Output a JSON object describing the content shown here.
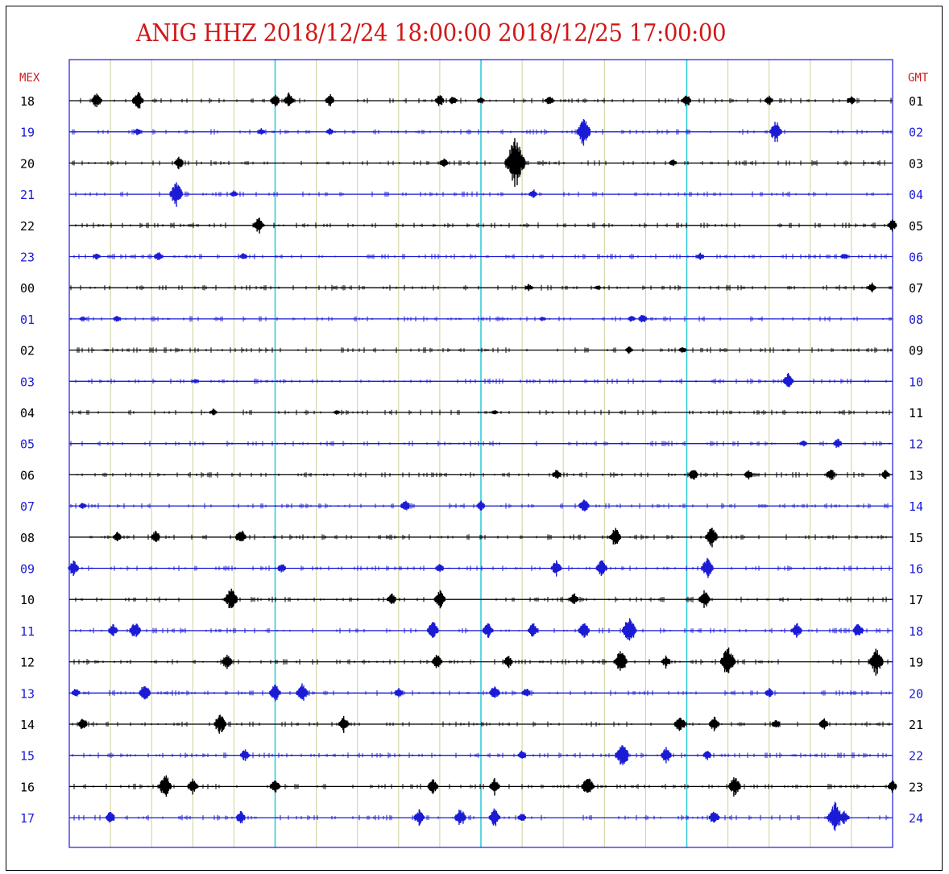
{
  "title": "ANIG HHZ 2018/12/24 18:00:00 2018/12/25 17:00:00",
  "left_header": "MEX",
  "right_header": "GMT",
  "colors": {
    "title": "#d01818",
    "header": "#d01818",
    "trace_a": "#000000",
    "trace_b": "#1b1bd6",
    "frame": "#1b1bd6",
    "minute_grid": "#cfcf9a",
    "hour_marks": "#27c9d8"
  },
  "chart_data": {
    "type": "helicorder",
    "title": "ANIG HHZ 2018/12/24 18:00:00 2018/12/25 17:00:00",
    "station": "ANIG",
    "channel": "HHZ",
    "start": "2018/12/24 18:00:00",
    "end": "2018/12/25 17:00:00",
    "minutes_per_line": 60,
    "minute_gridlines": 20,
    "highlighted_minutes": [
      15,
      30,
      45
    ],
    "rows": [
      {
        "mex": "18",
        "gmt": "01",
        "bursts": [
          [
            2,
            0.5
          ],
          [
            5,
            0.6
          ],
          [
            15,
            0.4
          ],
          [
            16,
            0.5
          ],
          [
            19,
            0.4
          ],
          [
            27,
            0.4
          ],
          [
            28,
            0.3
          ],
          [
            30,
            0.2
          ],
          [
            35,
            0.3
          ],
          [
            45,
            0.4
          ],
          [
            51,
            0.3
          ],
          [
            57,
            0.3
          ]
        ]
      },
      {
        "mex": "19",
        "gmt": "02",
        "bursts": [
          [
            5,
            0.2
          ],
          [
            14,
            0.2
          ],
          [
            19,
            0.2
          ],
          [
            37.5,
            0.9
          ],
          [
            51.5,
            0.7
          ]
        ]
      },
      {
        "mex": "20",
        "gmt": "03",
        "bursts": [
          [
            8,
            0.4
          ],
          [
            27.3,
            0.3
          ],
          [
            32.5,
            1.6
          ],
          [
            44,
            0.2
          ]
        ]
      },
      {
        "mex": "21",
        "gmt": "04",
        "bursts": [
          [
            7.8,
            0.8
          ],
          [
            12,
            0.2
          ],
          [
            33.8,
            0.3
          ]
        ]
      },
      {
        "mex": "22",
        "gmt": "05",
        "bursts": [
          [
            13.8,
            0.5
          ],
          [
            60,
            0.4
          ]
        ]
      },
      {
        "mex": "23",
        "gmt": "06",
        "bursts": [
          [
            2,
            0.2
          ],
          [
            6.5,
            0.3
          ],
          [
            12.7,
            0.2
          ],
          [
            46,
            0.2
          ],
          [
            56.5,
            0.2
          ]
        ]
      },
      {
        "mex": "00",
        "gmt": "07",
        "bursts": [
          [
            33.5,
            0.2
          ],
          [
            38.5,
            0.1
          ],
          [
            58.5,
            0.3
          ]
        ]
      },
      {
        "mex": "01",
        "gmt": "08",
        "bursts": [
          [
            1,
            0.1
          ],
          [
            3.5,
            0.2
          ],
          [
            34.5,
            0.1
          ],
          [
            41,
            0.2
          ],
          [
            41.8,
            0.3
          ]
        ]
      },
      {
        "mex": "02",
        "gmt": "09",
        "bursts": [
          [
            40.8,
            0.2
          ],
          [
            44.7,
            0.2
          ]
        ]
      },
      {
        "mex": "03",
        "gmt": "10",
        "bursts": [
          [
            9.2,
            0.1
          ],
          [
            52.4,
            0.5
          ]
        ]
      },
      {
        "mex": "04",
        "gmt": "11",
        "bursts": [
          [
            10.5,
            0.2
          ],
          [
            19.5,
            0.1
          ],
          [
            31,
            0.1
          ]
        ]
      },
      {
        "mex": "05",
        "gmt": "12",
        "bursts": [
          [
            53.5,
            0.2
          ],
          [
            56,
            0.3
          ]
        ]
      },
      {
        "mex": "06",
        "gmt": "13",
        "bursts": [
          [
            35.5,
            0.3
          ],
          [
            45.5,
            0.4
          ],
          [
            49.5,
            0.3
          ],
          [
            55.5,
            0.4
          ],
          [
            59.5,
            0.3
          ]
        ]
      },
      {
        "mex": "07",
        "gmt": "14",
        "bursts": [
          [
            1,
            0.2
          ],
          [
            24.5,
            0.4
          ],
          [
            30,
            0.3
          ],
          [
            37.5,
            0.5
          ]
        ]
      },
      {
        "mex": "08",
        "gmt": "15",
        "bursts": [
          [
            3.5,
            0.3
          ],
          [
            6.3,
            0.4
          ],
          [
            12.5,
            0.5
          ],
          [
            39.8,
            0.6
          ],
          [
            46.8,
            0.7
          ]
        ]
      },
      {
        "mex": "09",
        "gmt": "16",
        "bursts": [
          [
            0.3,
            0.5
          ],
          [
            15.5,
            0.3
          ],
          [
            27,
            0.3
          ],
          [
            35.5,
            0.5
          ],
          [
            38.8,
            0.6
          ],
          [
            46.5,
            0.7
          ]
        ]
      },
      {
        "mex": "10",
        "gmt": "17",
        "bursts": [
          [
            11.8,
            0.8
          ],
          [
            23.5,
            0.4
          ],
          [
            27,
            0.6
          ],
          [
            36.8,
            0.4
          ],
          [
            46.3,
            0.6
          ]
        ]
      },
      {
        "mex": "11",
        "gmt": "18",
        "bursts": [
          [
            3.2,
            0.4
          ],
          [
            4.8,
            0.6
          ],
          [
            26.5,
            0.6
          ],
          [
            30.5,
            0.5
          ],
          [
            33.8,
            0.5
          ],
          [
            37.5,
            0.6
          ],
          [
            40.8,
            0.9
          ],
          [
            53,
            0.5
          ],
          [
            57.5,
            0.5
          ]
        ]
      },
      {
        "mex": "12",
        "gmt": "19",
        "bursts": [
          [
            11.5,
            0.5
          ],
          [
            26.8,
            0.5
          ],
          [
            32,
            0.4
          ],
          [
            40.2,
            0.8
          ],
          [
            43.5,
            0.4
          ],
          [
            48,
            1.0
          ],
          [
            58.8,
            0.9
          ]
        ]
      },
      {
        "mex": "13",
        "gmt": "20",
        "bursts": [
          [
            0.5,
            0.3
          ],
          [
            5.5,
            0.6
          ],
          [
            15,
            0.6
          ],
          [
            17,
            0.6
          ],
          [
            24,
            0.3
          ],
          [
            31,
            0.5
          ],
          [
            33.3,
            0.3
          ],
          [
            51,
            0.3
          ]
        ]
      },
      {
        "mex": "14",
        "gmt": "21",
        "bursts": [
          [
            1,
            0.4
          ],
          [
            11,
            0.7
          ],
          [
            20,
            0.5
          ],
          [
            44.5,
            0.6
          ],
          [
            47,
            0.5
          ],
          [
            51.5,
            0.3
          ],
          [
            55,
            0.4
          ]
        ]
      },
      {
        "mex": "15",
        "gmt": "22",
        "bursts": [
          [
            12.8,
            0.4
          ],
          [
            33,
            0.3
          ],
          [
            40.3,
            0.9
          ],
          [
            43.5,
            0.5
          ],
          [
            46.5,
            0.3
          ]
        ]
      },
      {
        "mex": "16",
        "gmt": "23",
        "bursts": [
          [
            7,
            0.8
          ],
          [
            9,
            0.5
          ],
          [
            15,
            0.5
          ],
          [
            26.5,
            0.5
          ],
          [
            31,
            0.5
          ],
          [
            37.8,
            0.7
          ],
          [
            48.5,
            0.7
          ],
          [
            60,
            0.4
          ]
        ]
      },
      {
        "mex": "17",
        "gmt": "24",
        "bursts": [
          [
            3,
            0.4
          ],
          [
            12.5,
            0.4
          ],
          [
            25.5,
            0.5
          ],
          [
            28.5,
            0.6
          ],
          [
            31,
            0.6
          ],
          [
            33,
            0.3
          ],
          [
            47,
            0.5
          ],
          [
            55.8,
            1.0
          ],
          [
            56.5,
            0.4
          ]
        ]
      }
    ]
  }
}
